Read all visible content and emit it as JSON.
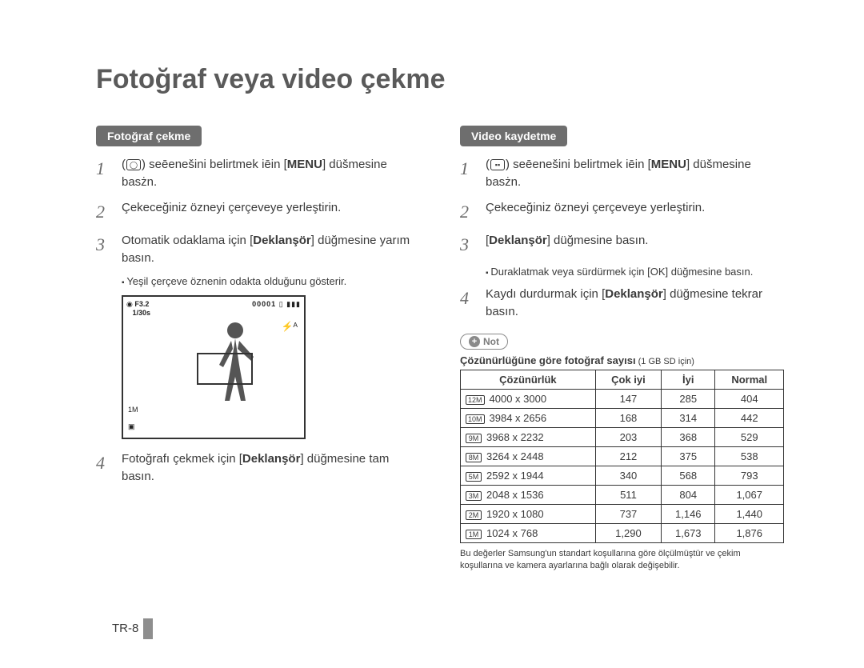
{
  "title": "Fotoğraf veya video çekme",
  "left": {
    "tag": "Fotoğraf çekme",
    "s1a": "(",
    "s1b": ") seēenešini belirtmek iēin [",
    "s1c": "MENU",
    "s1d": "] düšmesine basżn.",
    "s2": "Çekeceğiniz özneyi çerçeveye yerleştirin.",
    "s3a": "Otomatik odaklama için [",
    "s3b": "Deklanşör",
    "s3c": "] düğmesine yarım basın.",
    "s3sub": "Yeşil çerçeve öznenin odakta olduğunu gösterir.",
    "s4a": "Fotoğrafı çekmek için [",
    "s4b": "Deklanşör",
    "s4c": "] düğmesine tam basın.",
    "preview": {
      "tl1": "F3.2",
      "tl2": "1/30s",
      "tr": "00001",
      "flash": "⚡ᴬ",
      "m1": "1M",
      "m2": "▣"
    }
  },
  "right": {
    "tag": "Video kaydetme",
    "s1a": "(",
    "s1b": ") seēenešini belirtmek iēin [",
    "s1c": "MENU",
    "s1d": "] düšmesine basżn.",
    "s2": "Çekeceğiniz özneyi çerçeveye yerleştirin.",
    "s3a": "[",
    "s3b": "Deklanşör",
    "s3c": "] düğmesine basın.",
    "s3sub": "Duraklatmak veya sürdürmek için [OK] düğmesine basın.",
    "s4a": "Kaydı durdurmak için [",
    "s4b": "Deklanşör",
    "s4c": "] düğmesine tekrar basın.",
    "note": "Not",
    "tabletitle": "Çözünürlüğüne göre fotoğraf sayısı",
    "tabletitle_sm": " (1 GB SD için)",
    "headers": [
      "Çözünürlük",
      "Çok iyi",
      "İyi",
      "Normal"
    ],
    "rows": [
      {
        "code": "12M",
        "res": "4000 x 3000",
        "a": "147",
        "b": "285",
        "c": "404"
      },
      {
        "code": "10M",
        "res": "3984 x 2656",
        "a": "168",
        "b": "314",
        "c": "442"
      },
      {
        "code": "9M",
        "res": "3968 x 2232",
        "a": "203",
        "b": "368",
        "c": "529"
      },
      {
        "code": "8M",
        "res": "3264 x 2448",
        "a": "212",
        "b": "375",
        "c": "538"
      },
      {
        "code": "5M",
        "res": "2592 x 1944",
        "a": "340",
        "b": "568",
        "c": "793"
      },
      {
        "code": "3M",
        "res": "2048 x 1536",
        "a": "511",
        "b": "804",
        "c": "1,067"
      },
      {
        "code": "2M",
        "res": "1920 x 1080",
        "a": "737",
        "b": "1,146",
        "c": "1,440"
      },
      {
        "code": "1M",
        "res": "1024 x 768",
        "a": "1,290",
        "b": "1,673",
        "c": "1,876"
      }
    ],
    "foot": "Bu değerler Samsung'un standart koşullarına göre ölçülmüştür ve çekim koşullarına ve kamera ayarlarına bağlı olarak değişebilir."
  },
  "page": "TR-8"
}
